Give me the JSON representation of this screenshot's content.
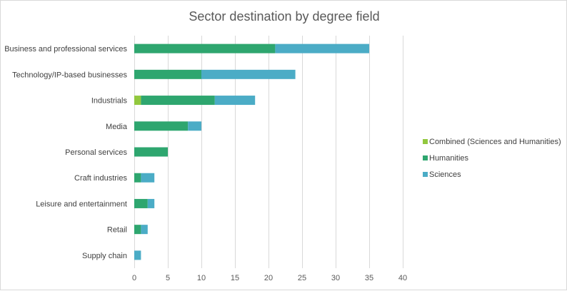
{
  "chart_data": {
    "type": "bar",
    "orientation": "horizontal",
    "stacked": true,
    "title": "Sector destination by degree field",
    "xlabel": "",
    "ylabel": "",
    "xlim": [
      0,
      40
    ],
    "x_ticks": [
      0,
      5,
      10,
      15,
      20,
      25,
      30,
      35,
      40
    ],
    "grid": true,
    "legend_position": "right",
    "categories": [
      "Business and professional services",
      "Technology/IP-based businesses",
      "Industrials",
      "Media",
      "Personal services",
      "Craft industries",
      "Leisure and entertainment",
      "Retail",
      "Supply chain"
    ],
    "series": [
      {
        "name": "Combined (Sciences and Humanities)",
        "color": "#92c83e",
        "values": [
          0,
          0,
          1,
          0,
          0,
          0,
          0,
          0,
          0
        ]
      },
      {
        "name": "Humanities",
        "color": "#2ea66f",
        "values": [
          21,
          10,
          11,
          8,
          5,
          1,
          2,
          1,
          0
        ]
      },
      {
        "name": "Sciences",
        "color": "#4bacc6",
        "values": [
          14,
          14,
          6,
          2,
          0,
          2,
          1,
          1,
          1
        ]
      }
    ]
  }
}
